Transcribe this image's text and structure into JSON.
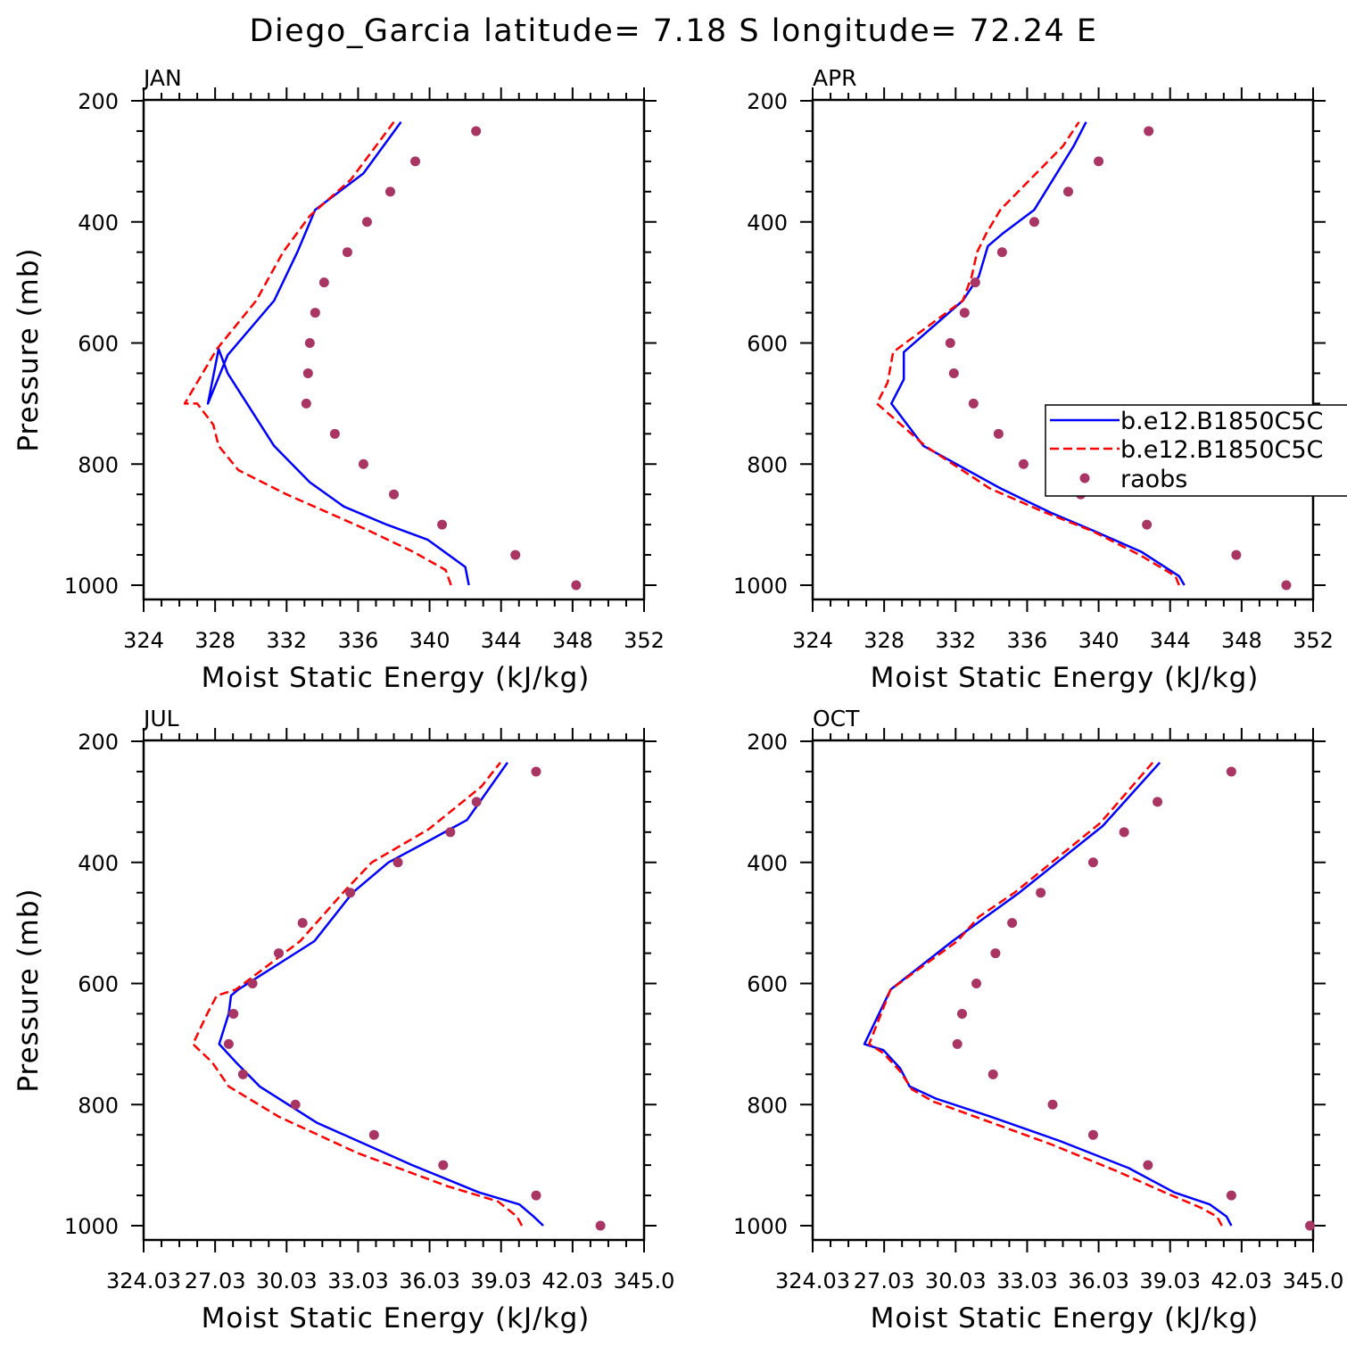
{
  "title": "Diego_Garcia  latitude= 7.18 S longitude= 72.24 E",
  "colors": {
    "model1": "#0000ff",
    "model2": "#ff0000",
    "raobs": "#a93564",
    "axes": "#000000"
  },
  "legend": [
    "b.e12.B1850C5C",
    "b.e12.B1850C5C",
    "raobs"
  ],
  "chart_data": [
    {
      "type": "line",
      "panel": "JAN",
      "xlabel": "Moist Static Energy (kJ/kg)",
      "ylabel": "Pressure (mb)",
      "xlim": [
        324,
        352
      ],
      "ylim": [
        1000,
        200
      ],
      "xticks": [
        324,
        328,
        332,
        336,
        340,
        344,
        348,
        352
      ],
      "xtick_labels": [
        "324",
        "328",
        "332",
        "336",
        "340",
        "344",
        "348",
        "352"
      ],
      "yticks": [
        200,
        400,
        600,
        800,
        1000
      ],
      "ytick_labels": [
        "200",
        "400",
        "600",
        "800",
        "1000"
      ],
      "grid": false,
      "series": [
        {
          "name": "b.e12.B1850C5C",
          "style": "solid",
          "color": "#0000ff",
          "x": [
            342.2,
            342.0,
            339.9,
            337.6,
            335.2,
            333.3,
            331.3,
            328.7,
            328.2,
            327.6,
            328.7,
            331.3,
            332.6,
            333.6,
            336.3,
            338.4
          ],
          "y": [
            1000,
            970,
            925,
            900,
            870,
            830,
            770,
            650,
            610,
            700,
            620,
            530,
            450,
            380,
            320,
            235
          ]
        },
        {
          "name": "b.e12.B1850C5C",
          "style": "dashed",
          "color": "#ff0000",
          "x": [
            341.2,
            340.9,
            339.1,
            336.6,
            334.3,
            332.0,
            329.3,
            328.2,
            327.9,
            327.0,
            326.3,
            327.3,
            328.1,
            330.3,
            331.8,
            333.3,
            335.6,
            338.0
          ],
          "y": [
            1000,
            975,
            945,
            910,
            880,
            850,
            810,
            770,
            735,
            700,
            700,
            650,
            610,
            530,
            450,
            390,
            330,
            235
          ]
        },
        {
          "name": "raobs",
          "style": "marker",
          "color": "#a93564",
          "x": [
            348.2,
            344.8,
            340.7,
            338.0,
            336.3,
            334.7,
            333.1,
            333.2,
            333.3,
            333.6,
            334.1,
            335.4,
            336.5,
            337.8,
            339.2,
            342.6
          ],
          "y": [
            1000,
            950,
            900,
            850,
            800,
            750,
            700,
            650,
            600,
            550,
            500,
            450,
            400,
            350,
            300,
            250
          ]
        }
      ]
    },
    {
      "type": "line",
      "panel": "APR",
      "xlabel": "Moist Static Energy (kJ/kg)",
      "ylabel": "",
      "xlim": [
        324,
        352
      ],
      "ylim": [
        1000,
        200
      ],
      "xticks": [
        324,
        328,
        332,
        336,
        340,
        344,
        348,
        352
      ],
      "xtick_labels": [
        "324",
        "328",
        "332",
        "336",
        "340",
        "344",
        "348",
        "352"
      ],
      "yticks": [
        200,
        400,
        600,
        800,
        1000
      ],
      "ytick_labels": [
        "200",
        "400",
        "600",
        "800",
        "1000"
      ],
      "grid": false,
      "series": [
        {
          "name": "b.e12.B1850C5C",
          "style": "solid",
          "color": "#0000ff",
          "x": [
            344.8,
            344.5,
            342.4,
            339.7,
            337.3,
            334.5,
            330.2,
            328.4,
            329.1,
            329.1,
            332.4,
            333.3,
            333.8,
            334.6,
            336.4,
            338.6,
            339.3
          ],
          "y": [
            1000,
            985,
            945,
            910,
            880,
            840,
            770,
            700,
            660,
            615,
            530,
            490,
            440,
            420,
            380,
            275,
            235
          ]
        },
        {
          "name": "b.e12.B1850C5C",
          "style": "dashed",
          "color": "#ff0000",
          "x": [
            344.5,
            344.3,
            342.3,
            339.6,
            337.0,
            333.9,
            330.3,
            327.6,
            328.2,
            328.5,
            332.4,
            332.9,
            333.2,
            333.7,
            334.5,
            338.0,
            338.9
          ],
          "y": [
            1000,
            985,
            950,
            910,
            880,
            840,
            770,
            700,
            665,
            615,
            530,
            490,
            450,
            420,
            380,
            275,
            235
          ]
        },
        {
          "name": "raobs",
          "style": "marker",
          "color": "#a93564",
          "x": [
            350.5,
            347.7,
            342.7,
            339.0,
            335.8,
            334.4,
            333.0,
            331.9,
            331.7,
            332.5,
            333.1,
            334.6,
            336.4,
            338.3,
            340.0,
            342.8
          ],
          "y": [
            1000,
            950,
            900,
            850,
            800,
            750,
            700,
            650,
            600,
            550,
            500,
            450,
            400,
            350,
            300,
            250
          ]
        }
      ]
    },
    {
      "type": "line",
      "panel": "JUL",
      "xlabel": "Moist Static Energy (kJ/kg)",
      "ylabel": "Pressure (mb)",
      "xlim": [
        324.03,
        345.03
      ],
      "ylim": [
        1000,
        200
      ],
      "xticks": [
        324.03,
        327.03,
        330.03,
        333.03,
        336.03,
        339.03,
        342.03,
        345.03
      ],
      "xtick_labels": [
        "324.03",
        "27.03",
        "30.03",
        "33.03",
        "36.03",
        "39.03",
        "42.03",
        "345.0"
      ],
      "yticks": [
        200,
        400,
        600,
        800,
        1000
      ],
      "ytick_labels": [
        "200",
        "400",
        "600",
        "800",
        "1000"
      ],
      "grid": false,
      "series": [
        {
          "name": "b.e12.B1850C5C",
          "style": "solid",
          "color": "#0000ff",
          "x": [
            340.8,
            340.4,
            339.8,
            338.1,
            335.3,
            331.3,
            328.9,
            327.9,
            327.2,
            327.6,
            327.7,
            328.0,
            331.2,
            332.8,
            334.3,
            336.2,
            337.6,
            339.3
          ],
          "y": [
            1000,
            985,
            965,
            945,
            900,
            830,
            770,
            730,
            700,
            650,
            620,
            610,
            530,
            450,
            400,
            360,
            330,
            235
          ]
        },
        {
          "name": "b.e12.B1850C5C",
          "style": "dashed",
          "color": "#ff0000",
          "x": [
            339.9,
            339.7,
            338.9,
            336.8,
            333.0,
            329.7,
            327.6,
            326.9,
            326.1,
            326.7,
            327.1,
            327.9,
            330.6,
            332.4,
            333.6,
            336.0,
            338.2,
            339.0
          ],
          "y": [
            1000,
            985,
            960,
            935,
            880,
            820,
            770,
            730,
            700,
            650,
            620,
            610,
            530,
            450,
            400,
            345,
            275,
            235
          ]
        },
        {
          "name": "raobs",
          "style": "marker",
          "color": "#a93564",
          "x": [
            343.2,
            340.5,
            336.6,
            333.7,
            330.4,
            328.2,
            327.6,
            327.8,
            328.6,
            329.7,
            330.7,
            332.7,
            334.7,
            336.9,
            338.0,
            340.5
          ],
          "y": [
            1000,
            950,
            900,
            850,
            800,
            750,
            700,
            650,
            600,
            550,
            500,
            450,
            400,
            350,
            300,
            250
          ]
        }
      ]
    },
    {
      "type": "line",
      "panel": "OCT",
      "xlabel": "Moist Static Energy (kJ/kg)",
      "ylabel": "",
      "xlim": [
        324.03,
        345.03
      ],
      "ylim": [
        1000,
        200
      ],
      "xticks": [
        324.03,
        327.03,
        330.03,
        333.03,
        336.03,
        339.03,
        342.03,
        345.03
      ],
      "xtick_labels": [
        "324.03",
        "27.03",
        "30.03",
        "33.03",
        "36.03",
        "39.03",
        "42.03",
        "345.0"
      ],
      "yticks": [
        200,
        400,
        600,
        800,
        1000
      ],
      "ytick_labels": [
        "200",
        "400",
        "600",
        "800",
        "1000"
      ],
      "grid": false,
      "series": [
        {
          "name": "b.e12.B1850C5C",
          "style": "solid",
          "color": "#0000ff",
          "x": [
            341.6,
            341.4,
            340.7,
            339.2,
            337.3,
            334.4,
            331.5,
            329.2,
            328.1,
            327.7,
            327.0,
            326.2,
            327.3,
            329.9,
            331.3,
            332.7,
            336.2,
            338.6
          ],
          "y": [
            1000,
            985,
            965,
            945,
            905,
            860,
            820,
            790,
            770,
            740,
            710,
            700,
            610,
            530,
            490,
            450,
            340,
            235
          ]
        },
        {
          "name": "b.e12.B1850C5C",
          "style": "dashed",
          "color": "#ff0000",
          "x": [
            341.2,
            341.0,
            340.3,
            338.8,
            336.8,
            334.0,
            331.2,
            329.1,
            328.2,
            327.7,
            327.0,
            326.4,
            327.3,
            330.1,
            331.0,
            332.5,
            336.1,
            338.3
          ],
          "y": [
            1000,
            985,
            970,
            945,
            910,
            865,
            825,
            795,
            775,
            745,
            715,
            700,
            610,
            530,
            490,
            450,
            335,
            235
          ]
        },
        {
          "name": "raobs",
          "style": "marker",
          "color": "#a93564",
          "x": [
            344.9,
            341.6,
            338.1,
            335.8,
            334.1,
            331.6,
            330.1,
            330.3,
            330.9,
            331.7,
            332.4,
            333.6,
            335.8,
            337.1,
            338.5,
            341.6
          ],
          "y": [
            1000,
            950,
            900,
            850,
            800,
            750,
            700,
            650,
            600,
            550,
            500,
            450,
            400,
            350,
            300,
            250
          ]
        }
      ]
    }
  ]
}
